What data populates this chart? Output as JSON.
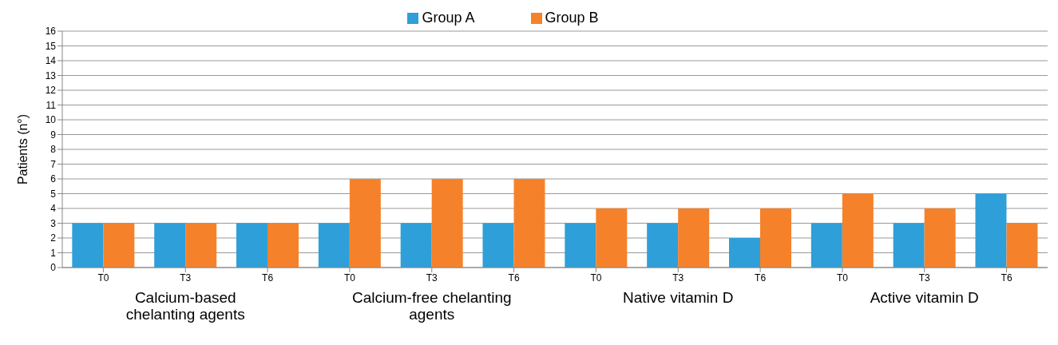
{
  "chart_data": {
    "type": "bar",
    "ylabel": "Patients (n°)",
    "categories": [
      "T0",
      "T3",
      "T6",
      "T0",
      "T3",
      "T6",
      "T0",
      "T3",
      "T6",
      "T0",
      "T3",
      "T6"
    ],
    "series": [
      {
        "name": "Group A",
        "color": "#2e9fd8",
        "values": [
          3,
          3,
          3,
          3,
          3,
          3,
          3,
          3,
          2,
          3,
          3,
          5
        ]
      },
      {
        "name": "Group B",
        "color": "#f5822a",
        "values": [
          3,
          3,
          3,
          6,
          6,
          6,
          4,
          4,
          4,
          5,
          4,
          3
        ]
      }
    ],
    "ylim": [
      0,
      16
    ],
    "yticks": [
      0,
      1,
      2,
      3,
      4,
      5,
      6,
      7,
      8,
      9,
      10,
      11,
      12,
      13,
      14,
      15,
      16
    ],
    "grid": "y",
    "legend": "top",
    "annotations": [
      "Calcium-based chelanting agents",
      "Calcium-free chelanting agents",
      "Native vitamin D",
      "Active vitamin D"
    ]
  }
}
